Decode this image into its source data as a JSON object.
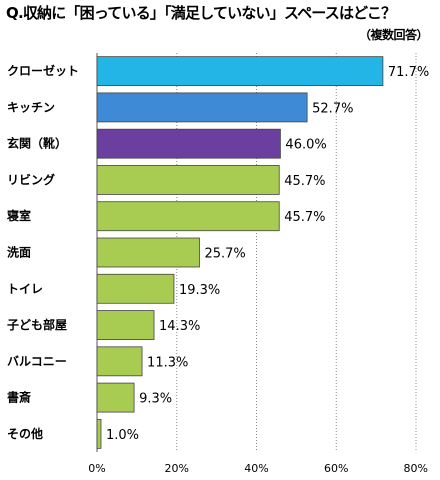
{
  "header": {
    "title": "Q.収納に「困っている」「満足していない」スペースはどこ？",
    "subtitle": "（複数回答）"
  },
  "colors": {
    "highlight": "#22b5e6",
    "second": "#3f8ad6",
    "third": "#6a3fa0",
    "default": "#a8cc52",
    "border": "#444444",
    "grid": "#888888"
  },
  "chart_data": {
    "type": "bar",
    "orientation": "horizontal",
    "title": "Q.収納に「困っている」「満足していない」スペースはどこ？",
    "subtitle": "（複数回答）",
    "categories": [
      "クローゼット",
      "キッチン",
      "玄関（靴）",
      "リビング",
      "寝室",
      "洗面",
      "トイレ",
      "子ども部屋",
      "バルコニー",
      "書斎",
      "その他"
    ],
    "values": [
      71.7,
      52.7,
      46.0,
      45.7,
      45.7,
      25.7,
      19.3,
      14.3,
      11.3,
      9.3,
      1.0
    ],
    "value_labels": [
      "71.7%",
      "52.7%",
      "46.0%",
      "45.7%",
      "45.7%",
      "25.7%",
      "19.3%",
      "14.3%",
      "11.3%",
      "9.3%",
      "1.0%"
    ],
    "bar_colors": [
      "#22b5e6",
      "#3f8ad6",
      "#6a3fa0",
      "#a8cc52",
      "#a8cc52",
      "#a8cc52",
      "#a8cc52",
      "#a8cc52",
      "#a8cc52",
      "#a8cc52",
      "#a8cc52"
    ],
    "xlim": [
      0,
      80
    ],
    "xticks": [
      0,
      20,
      40,
      60,
      80
    ],
    "xtick_labels": [
      "0%",
      "20%",
      "40%",
      "60%",
      "80%"
    ],
    "grid": "vertical dotted",
    "xlabel": "",
    "ylabel": ""
  }
}
